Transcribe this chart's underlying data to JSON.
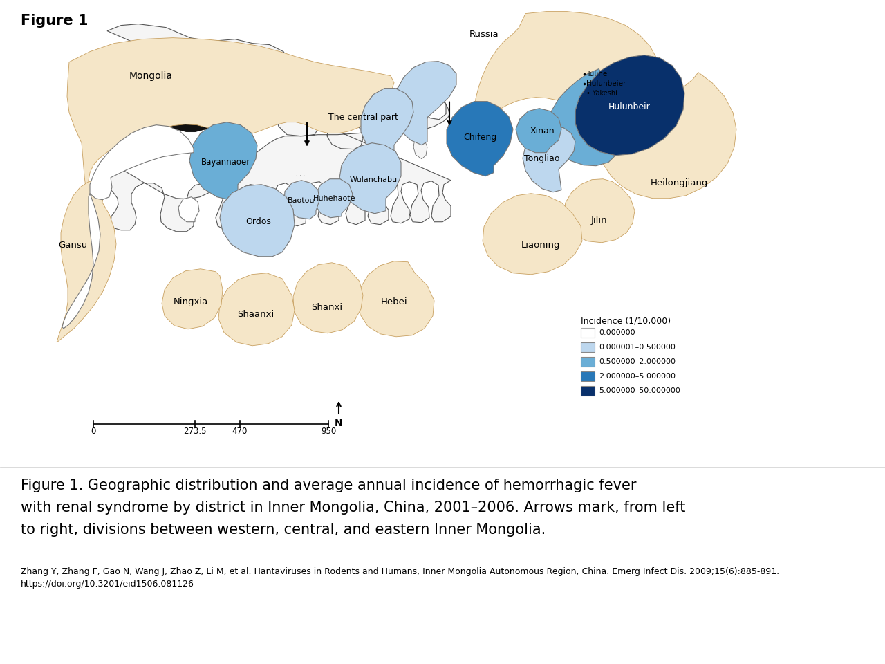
{
  "title": "Figure 1",
  "title_fontsize": 15,
  "title_fontweight": "bold",
  "caption_line1": "Figure 1. Geographic distribution and average annual incidence of hemorrhagic fever",
  "caption_line2": "with renal syndrome by district in Inner Mongolia, China, 2001–2006. Arrows mark, from left",
  "caption_line3": "to right, divisions between western, central, and eastern Inner Mongolia.",
  "caption_fontsize": 15,
  "citation_line1": "Zhang Y, Zhang F, Gao N, Wang J, Zhao Z, Li M, et al. Hantaviruses in Rodents and Humans, Inner Mongolia Autonomous Region, China. Emerg Infect Dis. 2009;15(6):885-891.",
  "citation_line2": "https://doi.org/10.3201/eid1506.081126",
  "citation_fontsize": 9,
  "background_color": "#ffffff",
  "legend_title": "Incidence (1/10,000)",
  "legend_items": [
    {
      "label": "0.000000",
      "color": "#ffffff",
      "edgecolor": "#aaaaaa"
    },
    {
      "label": "0.000001–0.500000",
      "color": "#bdd7ee",
      "edgecolor": "#888888"
    },
    {
      "label": "0.500000–2.000000",
      "color": "#6aaed6",
      "edgecolor": "#888888"
    },
    {
      "label": "2.000000–5.000000",
      "color": "#2878b8",
      "edgecolor": "#888888"
    },
    {
      "label": "5.000000–50.000000",
      "color": "#08306b",
      "edgecolor": "#888888"
    }
  ],
  "c0": "#ffffff",
  "c1": "#bdd7ee",
  "c2": "#6aaed6",
  "c3": "#2878b8",
  "c4": "#08306b",
  "c_neighbor": "#f5e6c8",
  "c_border_neighbor": "#c8a060",
  "c_border_im": "#777777",
  "c_china_fill": "#f5f5f5",
  "c_china_border": "#555555",
  "c_im_black": "#111111"
}
